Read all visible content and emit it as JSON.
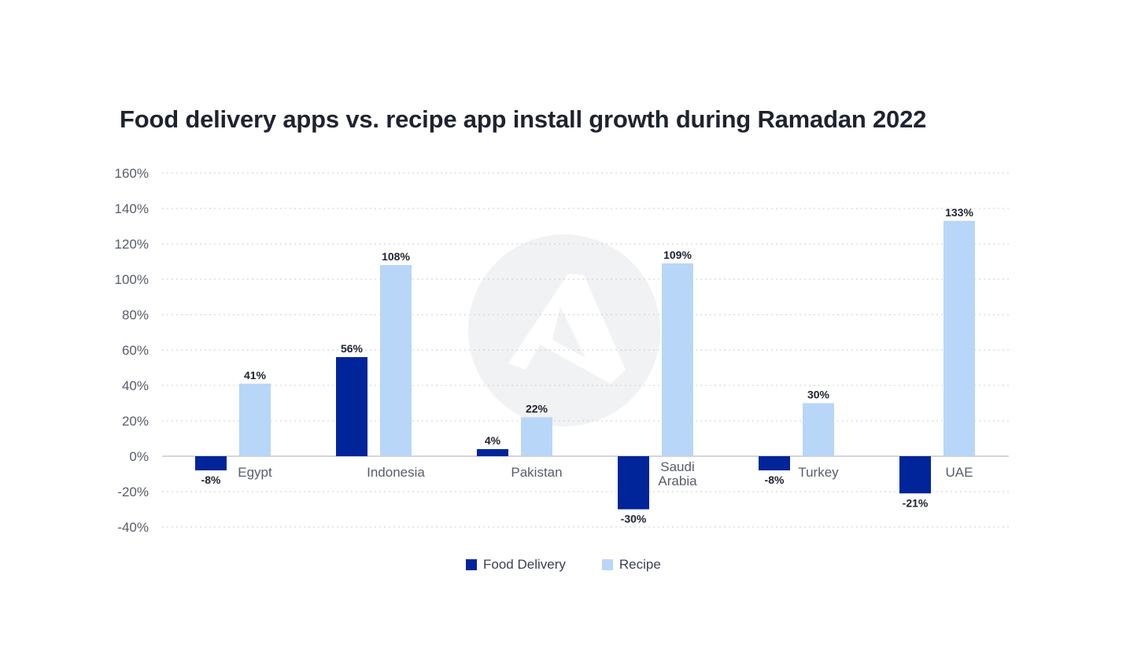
{
  "chart_data": {
    "type": "bar",
    "title": "Food delivery apps vs. recipe app install growth during Ramadan 2022",
    "xlabel": "",
    "ylabel": "",
    "ylim": [
      -40,
      160
    ],
    "yticks": [
      -40,
      -20,
      0,
      20,
      40,
      60,
      80,
      100,
      120,
      140,
      160
    ],
    "ytick_labels": [
      "-40%",
      "-20%",
      "0%",
      "20%",
      "40%",
      "60%",
      "80%",
      "100%",
      "120%",
      "140%",
      "160%"
    ],
    "categories": [
      "Egypt",
      "Indonesia",
      "Pakistan",
      "Saudi Arabia",
      "Turkey",
      "UAE"
    ],
    "category_lines": [
      [
        "Egypt"
      ],
      [
        "Indonesia"
      ],
      [
        "Pakistan"
      ],
      [
        "Saudi",
        "Arabia"
      ],
      [
        "Turkey"
      ],
      [
        "UAE"
      ]
    ],
    "series": [
      {
        "name": "Food Delivery",
        "color": "#00259a",
        "values": [
          -8,
          56,
          4,
          -30,
          -8,
          -21
        ],
        "labels": [
          "-8%",
          "56%",
          "4%",
          "-30%",
          "-8%",
          "-21%"
        ]
      },
      {
        "name": "Recipe",
        "color": "#b8d6f7",
        "values": [
          41,
          108,
          22,
          109,
          30,
          133
        ],
        "labels": [
          "41%",
          "108%",
          "22%",
          "109%",
          "30%",
          "133%"
        ]
      }
    ],
    "grid": true,
    "legend_position": "bottom-center"
  },
  "colors": {
    "title": "#1f2330",
    "axis_text": "#585d6b",
    "grid": "#c9ccd3",
    "data_label": "#1f2330"
  }
}
